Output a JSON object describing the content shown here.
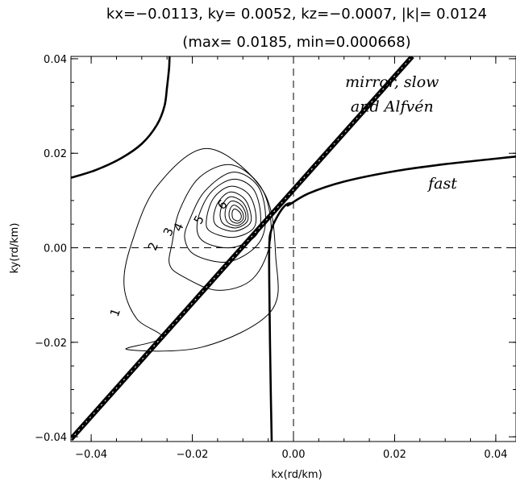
{
  "chart_data": {
    "type": "contour",
    "title": "kx=−0.0113, ky= 0.0052, kz=−0.0007, |k|= 0.0124",
    "subtitle": "(max=  0.0185, min=0.000668)",
    "xlabel": "kx(rd/km)",
    "ylabel": "ky(rd/km)",
    "xlim": [
      -0.044,
      0.044
    ],
    "ylim": [
      -0.041,
      0.0405
    ],
    "x_ticks": [
      -0.04,
      -0.02,
      0.0,
      0.02,
      0.04
    ],
    "y_ticks": [
      -0.04,
      -0.02,
      0.0,
      0.02,
      0.04
    ],
    "x_tick_labels": [
      "−0.04",
      "−0.02",
      "0.00",
      "0.02",
      "0.04"
    ],
    "y_tick_labels": [
      "−0.04",
      "−0.02",
      "0.00",
      "0.02",
      "0.04"
    ],
    "reference_lines": [
      {
        "orientation": "vertical",
        "value": 0.0,
        "style": "dashed"
      },
      {
        "orientation": "horizontal",
        "value": 0.0,
        "style": "dashed"
      }
    ],
    "center": [
      -0.0113,
      0.0052
    ],
    "contour_levels": [
      "1",
      "2",
      "3",
      "4",
      "5",
      "6"
    ],
    "annotations": [
      {
        "text": "mirror, slow",
        "x": 0.0195,
        "y": 0.034
      },
      {
        "text": "and Alfvén",
        "x": 0.0195,
        "y": 0.0288
      },
      {
        "text": "fast",
        "x": 0.0295,
        "y": 0.0125
      }
    ],
    "curves": {
      "slow_line": {
        "name": "mirror, slow and Alfvén",
        "x": [
          -0.044,
          0.0235
        ],
        "y": [
          -0.0405,
          0.0405
        ]
      },
      "fast_upper_left": {
        "name": "fast",
        "x": [
          -0.044,
          -0.039,
          -0.034,
          -0.03,
          -0.027,
          -0.0255,
          -0.025,
          -0.0246,
          -0.0245
        ],
        "y": [
          0.0148,
          0.0165,
          0.019,
          0.022,
          0.026,
          0.03,
          0.034,
          0.038,
          0.0405
        ]
      },
      "fast_right": {
        "name": "fast",
        "x": [
          -0.0005,
          -0.001,
          0.003,
          0.01,
          0.02,
          0.03,
          0.044
        ],
        "y": [
          0.0095,
          0.009,
          0.0115,
          0.014,
          0.0162,
          0.0177,
          0.0193
        ]
      },
      "fast_lower": {
        "name": "fast",
        "x": [
          -0.0005,
          -0.0016,
          -0.003,
          -0.0043,
          -0.0048,
          -0.0047,
          -0.0045,
          -0.0043
        ],
        "y": [
          0.0095,
          0.009,
          0.007,
          0.004,
          0.0,
          -0.015,
          -0.03,
          -0.041
        ]
      }
    },
    "contours": [
      {
        "level": "1",
        "x": [
          -0.033,
          -0.018,
          -0.0045,
          -0.0035,
          -0.006,
          -0.017,
          -0.027,
          -0.032,
          -0.0335,
          -0.031,
          -0.026,
          -0.033
        ],
        "y": [
          -0.0215,
          -0.021,
          -0.0135,
          -0.002,
          0.012,
          0.021,
          0.013,
          0.001,
          -0.008,
          -0.015,
          -0.019,
          -0.0215
        ]
      },
      {
        "level": "2",
        "x": [
          -0.022,
          -0.015,
          -0.008,
          -0.0045,
          -0.006,
          -0.012,
          -0.0185,
          -0.0225,
          -0.024,
          -0.0245,
          -0.022
        ],
        "y": [
          -0.006,
          -0.009,
          -0.0065,
          0.002,
          0.012,
          0.0175,
          0.015,
          0.008,
          0.001,
          -0.0035,
          -0.006
        ]
      },
      {
        "level": "3",
        "x": [
          -0.0195,
          -0.013,
          -0.0072,
          -0.0055,
          -0.007,
          -0.012,
          -0.0175,
          -0.0205,
          -0.0215,
          -0.0195
        ],
        "y": [
          -0.0015,
          -0.003,
          0.0005,
          0.006,
          0.013,
          0.016,
          0.012,
          0.006,
          0.002,
          -0.0015
        ]
      },
      {
        "level": "4",
        "x": [
          -0.018,
          -0.0125,
          -0.0075,
          -0.0065,
          -0.008,
          -0.012,
          -0.0165,
          -0.019,
          -0.018
        ],
        "y": [
          0.0015,
          0.0,
          0.0025,
          0.007,
          0.0125,
          0.0145,
          0.0115,
          0.0055,
          0.0015
        ]
      },
      {
        "level": "5",
        "x": [
          -0.0165,
          -0.012,
          -0.008,
          -0.0075,
          -0.009,
          -0.0125,
          -0.0158,
          -0.0172,
          -0.0165
        ],
        "y": [
          0.0035,
          0.0022,
          0.004,
          0.0075,
          0.0115,
          0.013,
          0.0105,
          0.006,
          0.0035
        ]
      },
      {
        "level": "6",
        "x": [
          -0.015,
          -0.0117,
          -0.0087,
          -0.0085,
          -0.0098,
          -0.0125,
          -0.0148,
          -0.0158,
          -0.015
        ],
        "y": [
          0.0045,
          0.0035,
          0.005,
          0.0075,
          0.0105,
          0.0118,
          0.0098,
          0.0065,
          0.0045
        ]
      },
      {
        "level": "",
        "x": [
          -0.0138,
          -0.0113,
          -0.0092,
          -0.0091,
          -0.0102,
          -0.0125,
          -0.014,
          -0.0145,
          -0.0138
        ],
        "y": [
          0.005,
          0.0042,
          0.0055,
          0.0075,
          0.0098,
          0.0108,
          0.0092,
          0.0068,
          0.005
        ]
      },
      {
        "level": "",
        "x": [
          -0.0128,
          -0.011,
          -0.0096,
          -0.0095,
          -0.0105,
          -0.0122,
          -0.0133,
          -0.0135,
          -0.0128
        ],
        "y": [
          0.0052,
          0.0047,
          0.0058,
          0.0074,
          0.0092,
          0.0099,
          0.0086,
          0.0066,
          0.0052
        ]
      },
      {
        "level": "",
        "x": [
          -0.0122,
          -0.011,
          -0.01,
          -0.01,
          -0.0108,
          -0.0119,
          -0.0126,
          -0.0127,
          -0.0122
        ],
        "y": [
          0.0056,
          0.0052,
          0.006,
          0.0073,
          0.0085,
          0.009,
          0.008,
          0.0066,
          0.0056
        ]
      },
      {
        "level": "",
        "x": [
          -0.0118,
          -0.011,
          -0.0104,
          -0.0104,
          -0.011,
          -0.0117,
          -0.0121,
          -0.0121,
          -0.0118
        ],
        "y": [
          0.006,
          0.0057,
          0.0062,
          0.0071,
          0.0079,
          0.0082,
          0.0076,
          0.0066,
          0.006
        ]
      }
    ],
    "contour_label_positions": [
      {
        "text": "1",
        "x": -0.0345,
        "y": -0.014,
        "rotate": -70
      },
      {
        "text": "2",
        "x": -0.027,
        "y": 0.0,
        "rotate": -70
      },
      {
        "text": "3",
        "x": -0.024,
        "y": 0.003,
        "rotate": -65
      },
      {
        "text": "4",
        "x": -0.022,
        "y": 0.004,
        "rotate": -65
      },
      {
        "text": "5",
        "x": -0.018,
        "y": 0.0055,
        "rotate": -60
      },
      {
        "text": "6",
        "x": -0.0135,
        "y": 0.0085,
        "rotate": -45
      }
    ]
  }
}
